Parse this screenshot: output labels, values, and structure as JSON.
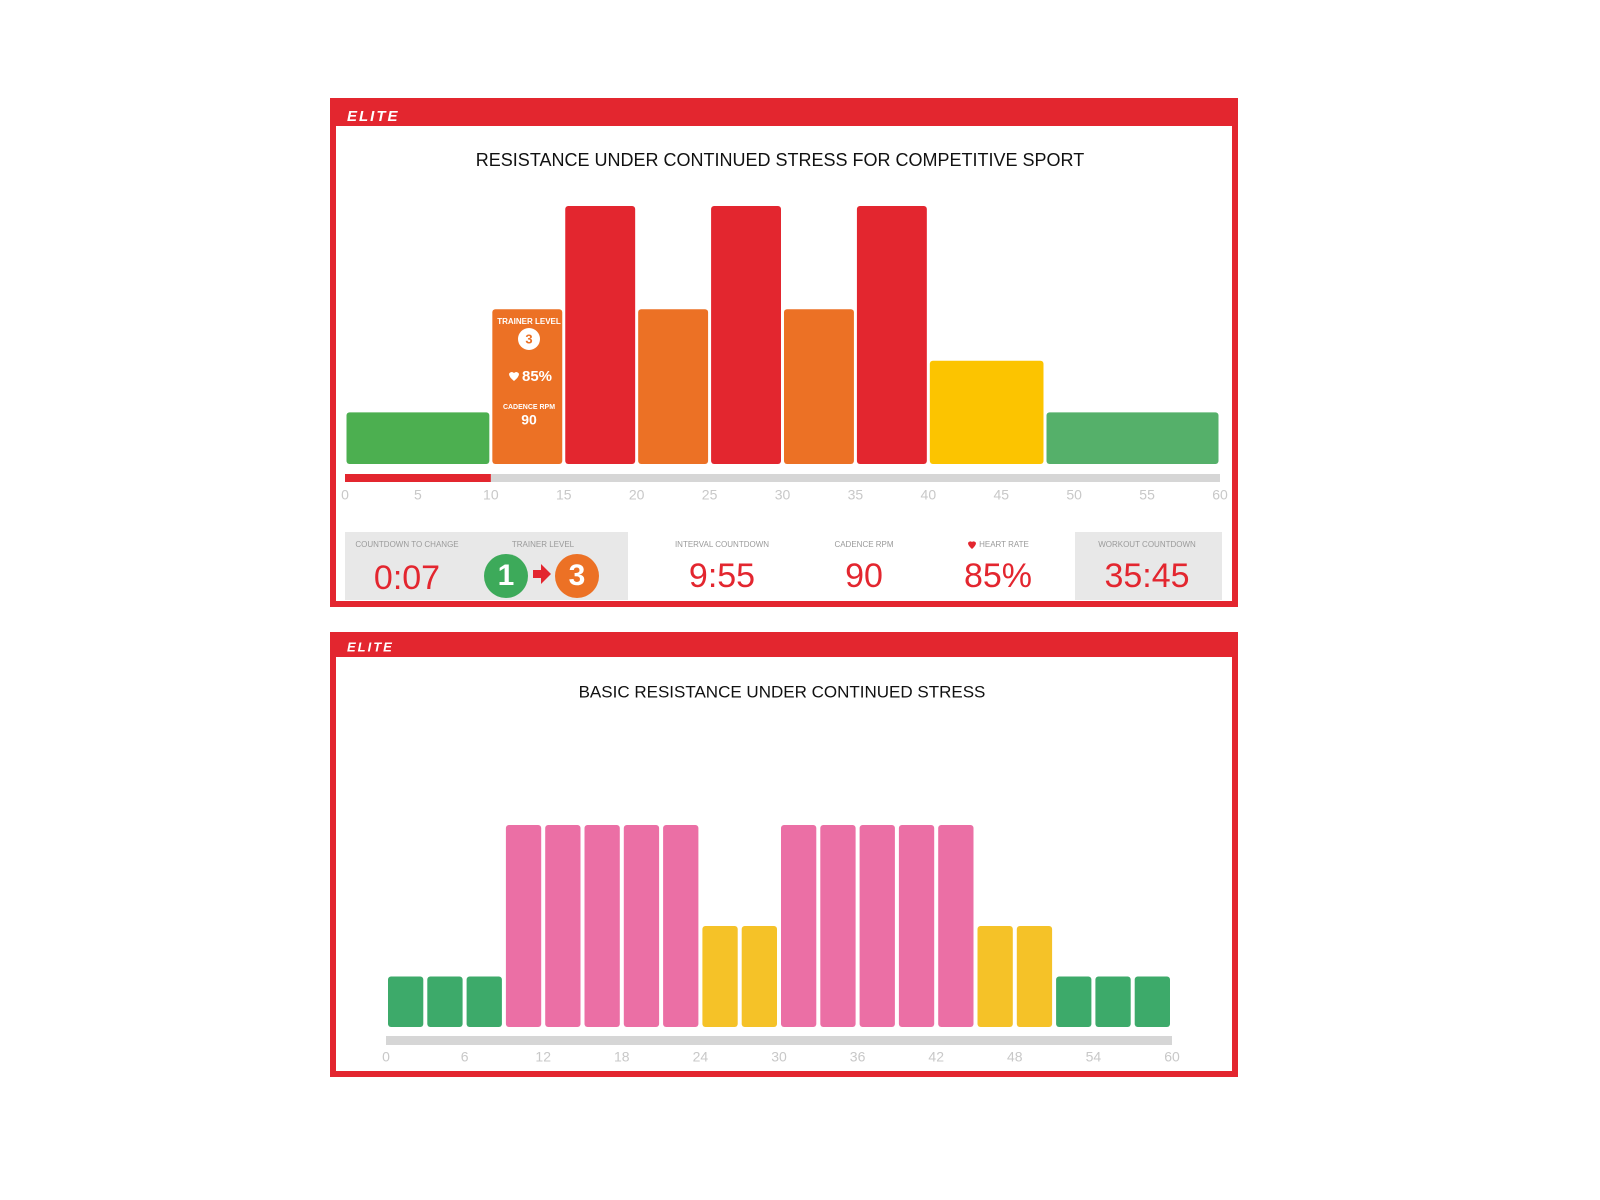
{
  "logo": "ELITE",
  "chart_data": [
    {
      "type": "histogram",
      "title": "RESISTANCE UNDER CONTINUED STRESS FOR COMPETITIVE SPORT",
      "bins": [
        0,
        10,
        15,
        20,
        25,
        30,
        35,
        40,
        48,
        60
      ],
      "values": [
        1,
        3,
        5,
        3,
        5,
        3,
        5,
        2,
        1
      ],
      "colors": [
        "#4caf50",
        "#ec7125",
        "#e3262f",
        "#ec7125",
        "#e3262f",
        "#ec7125",
        "#e3262f",
        "#fcc400",
        "#55b06a"
      ],
      "xlim": [
        0,
        60
      ],
      "xticks": [
        0,
        5,
        10,
        15,
        20,
        25,
        30,
        35,
        40,
        45,
        50,
        55,
        60
      ],
      "progress": 10,
      "progress_color": "#e3262f",
      "overlay": {
        "level_label": "TRAINER LEVEL",
        "level": "3",
        "heart_rate": "85%",
        "cadence_label": "CADENCE RPM",
        "cadence": "90"
      }
    },
    {
      "type": "histogram",
      "title": "BASIC RESISTANCE UNDER CONTINUED STRESS",
      "bins": [
        0,
        3,
        6,
        9,
        12,
        15,
        18,
        21,
        24,
        27,
        30,
        33,
        36,
        39,
        42,
        45,
        48,
        51,
        54,
        57,
        60
      ],
      "values": [
        1,
        1,
        1,
        4,
        4,
        4,
        4,
        4,
        2,
        2,
        4,
        4,
        4,
        4,
        4,
        2,
        2,
        1,
        1,
        1
      ],
      "colors": [
        "#3daa6a",
        "#3daa6a",
        "#3daa6a",
        "#eb6fa5",
        "#eb6fa5",
        "#eb6fa5",
        "#eb6fa5",
        "#eb6fa5",
        "#f5c228",
        "#f5c228",
        "#eb6fa5",
        "#eb6fa5",
        "#eb6fa5",
        "#eb6fa5",
        "#eb6fa5",
        "#f5c228",
        "#f5c228",
        "#3daa6a",
        "#3daa6a",
        "#3daa6a"
      ],
      "xlim": [
        0,
        60
      ],
      "xticks": [
        0,
        6,
        12,
        18,
        24,
        30,
        36,
        42,
        48,
        54,
        60
      ]
    }
  ],
  "stats": [
    {
      "label": "COUNTDOWN TO CHANGE",
      "value": "0:07"
    },
    {
      "label": "TRAINER LEVEL",
      "from": "1",
      "to": "3"
    },
    {
      "label": "INTERVAL COUNTDOWN",
      "value": "9:55"
    },
    {
      "label": "CADENCE RPM",
      "value": "90"
    },
    {
      "label": "HEART RATE",
      "value": "85%"
    },
    {
      "label": "WORKOUT COUNTDOWN",
      "value": "35:45"
    }
  ]
}
